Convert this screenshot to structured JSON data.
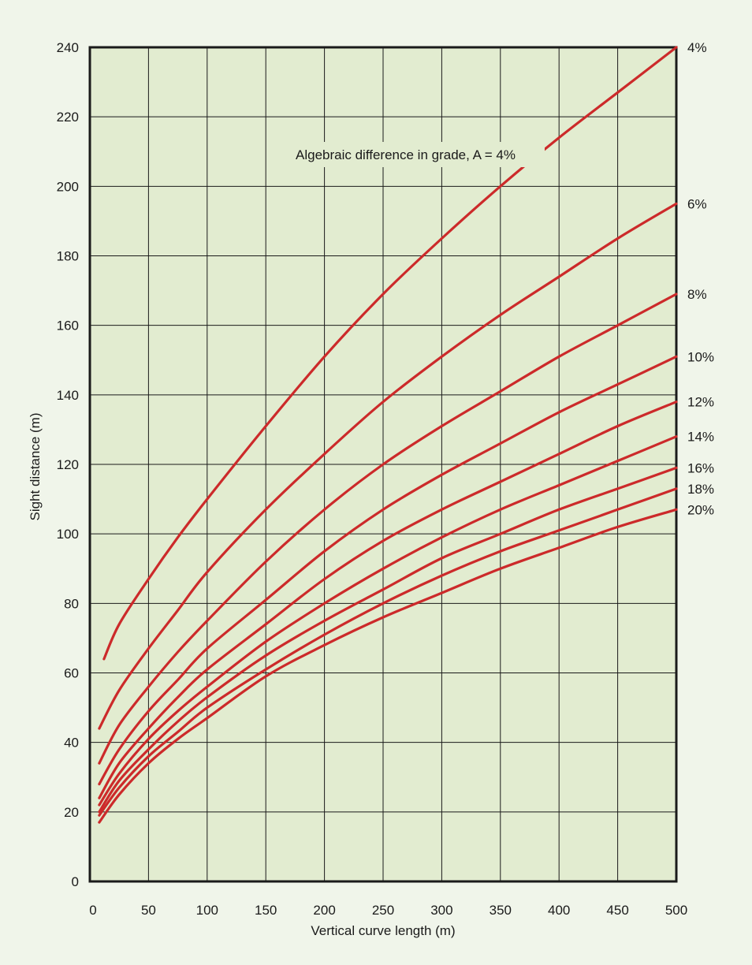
{
  "chart_data": {
    "type": "line",
    "xlabel": "Vertical curve length (m)",
    "ylabel": "Sight distance (m)",
    "xlim": [
      0,
      500
    ],
    "ylim": [
      0,
      240
    ],
    "x_ticks": [
      "0",
      "50",
      "100",
      "150",
      "200",
      "250",
      "300",
      "350",
      "400",
      "450",
      "500"
    ],
    "y_ticks": [
      "0",
      "20",
      "40",
      "60",
      "80",
      "100",
      "120",
      "140",
      "160",
      "180",
      "200",
      "220",
      "240"
    ],
    "grid": true,
    "annotation": "Algebraic difference in grade, A = 4%",
    "colors": {
      "plot_bg": "#e2ecd0",
      "line": "#cc2a2a",
      "page_bg": "#f0f5ea",
      "grid": "#1a1a1a"
    },
    "series": [
      {
        "name": "4%",
        "x": [
          12,
          25,
          50,
          75,
          100,
          150,
          200,
          250,
          300,
          350,
          400,
          450,
          500
        ],
        "y": [
          64,
          74,
          87,
          99,
          110,
          131,
          151,
          169,
          185,
          200,
          214,
          227,
          240
        ]
      },
      {
        "name": "6%",
        "x": [
          8,
          25,
          50,
          75,
          100,
          150,
          200,
          250,
          300,
          350,
          400,
          450,
          500
        ],
        "y": [
          44,
          55,
          67,
          78,
          89,
          107,
          123,
          138,
          151,
          163,
          174,
          185,
          195
        ]
      },
      {
        "name": "8%",
        "x": [
          8,
          25,
          50,
          75,
          100,
          150,
          200,
          250,
          300,
          350,
          400,
          450,
          500
        ],
        "y": [
          34,
          45,
          56,
          66,
          75,
          92,
          107,
          120,
          131,
          141,
          151,
          160,
          169
        ]
      },
      {
        "name": "10%",
        "x": [
          8,
          25,
          50,
          75,
          100,
          150,
          200,
          250,
          300,
          350,
          400,
          450,
          500
        ],
        "y": [
          28,
          38,
          49,
          58,
          67,
          81,
          95,
          107,
          117,
          126,
          135,
          143,
          151
        ]
      },
      {
        "name": "12%",
        "x": [
          8,
          25,
          50,
          75,
          100,
          150,
          200,
          250,
          300,
          350,
          400,
          450,
          500
        ],
        "y": [
          24,
          34,
          44,
          53,
          61,
          74,
          87,
          98,
          107,
          115,
          123,
          131,
          138
        ]
      },
      {
        "name": "14%",
        "x": [
          8,
          25,
          50,
          75,
          100,
          150,
          200,
          250,
          300,
          350,
          400,
          450,
          500
        ],
        "y": [
          22,
          31,
          41,
          49,
          56,
          69,
          80,
          90,
          99,
          107,
          114,
          121,
          128
        ]
      },
      {
        "name": "16%",
        "x": [
          8,
          25,
          50,
          75,
          100,
          150,
          200,
          250,
          300,
          350,
          400,
          450,
          500
        ],
        "y": [
          20,
          29,
          38,
          46,
          53,
          65,
          75,
          84,
          93,
          100,
          107,
          113,
          119
        ]
      },
      {
        "name": "18%",
        "x": [
          8,
          25,
          50,
          75,
          100,
          150,
          200,
          250,
          300,
          350,
          400,
          450,
          500
        ],
        "y": [
          19,
          27,
          36,
          43,
          50,
          61,
          71,
          80,
          88,
          95,
          101,
          107,
          113
        ]
      },
      {
        "name": "20%",
        "x": [
          8,
          25,
          50,
          75,
          100,
          150,
          200,
          250,
          300,
          350,
          400,
          450,
          500
        ],
        "y": [
          17,
          25,
          34,
          41,
          47,
          59,
          68,
          76,
          83,
          90,
          96,
          102,
          107
        ]
      }
    ]
  }
}
